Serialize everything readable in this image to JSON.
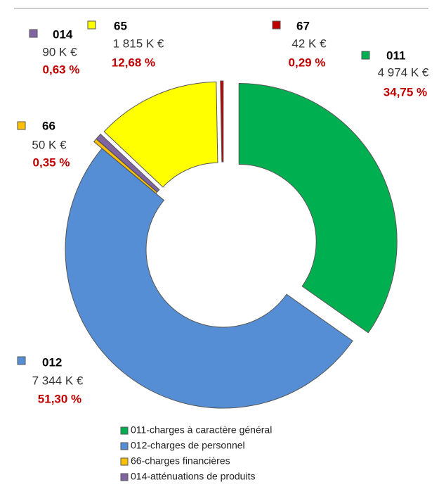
{
  "chart_data": {
    "type": "donut",
    "categories": [
      "011",
      "012",
      "66",
      "014",
      "65",
      "67"
    ],
    "values": [
      34.75,
      51.3,
      0.35,
      0.63,
      12.68,
      0.29
    ],
    "value_labels": [
      "34,75 %",
      "51,30 %",
      "0,35 %",
      "0,63 %",
      "12,68 %",
      "0,29 %"
    ],
    "amounts": [
      4974,
      7344,
      50,
      90,
      1815,
      42
    ],
    "amount_labels": [
      "4 974 K €",
      "7 344 K €",
      "50 K €",
      "90 K €",
      "1 815 K €",
      "42 K €"
    ],
    "colors": [
      "#00b050",
      "#558ed5",
      "#ffc000",
      "#8064a2",
      "#ffff00",
      "#c00000"
    ],
    "legend": [
      "011-charges à caractère général",
      "012-charges de personnel",
      "66-charges financières",
      "014-atténuations de produits"
    ]
  }
}
